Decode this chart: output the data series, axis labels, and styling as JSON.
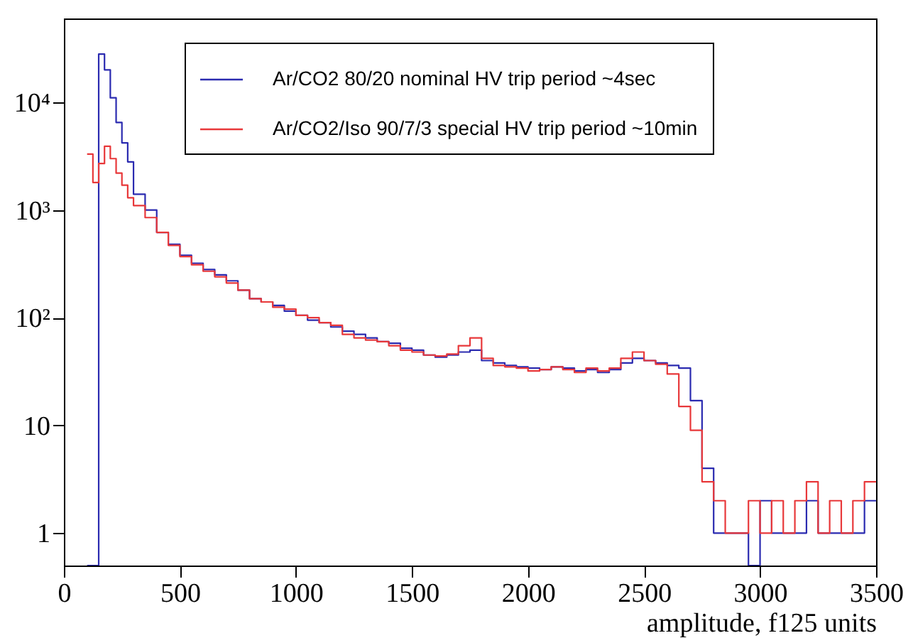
{
  "chart_data": {
    "type": "histogram",
    "xlabel": "amplitude, f125 units",
    "log": "y",
    "grid": false,
    "legend": "top right",
    "xlim": [
      0,
      3500
    ],
    "xticks": [
      0,
      500,
      1000,
      1500,
      2000,
      2500,
      3000,
      3500
    ],
    "ylim": [
      0.5,
      60000
    ],
    "yticks": [
      1,
      10,
      {
        "value": 100,
        "label": "10²"
      },
      {
        "value": 1000,
        "label": "10³"
      },
      {
        "value": 10000,
        "label": "10⁴"
      }
    ],
    "bins": [
      100,
      125,
      150,
      175,
      200,
      225,
      250,
      275,
      300,
      350,
      400,
      450,
      500,
      550,
      600,
      650,
      700,
      750,
      800,
      850,
      900,
      950,
      1000,
      1050,
      1100,
      1150,
      1200,
      1250,
      1300,
      1350,
      1400,
      1450,
      1500,
      1550,
      1600,
      1650,
      1700,
      1750,
      1800,
      1850,
      1900,
      1950,
      2000,
      2050,
      2100,
      2150,
      2200,
      2250,
      2300,
      2350,
      2400,
      2450,
      2500,
      2550,
      2600,
      2650,
      2700,
      2750,
      2800,
      2850,
      2900,
      2950,
      3000,
      3050,
      3100,
      3150,
      3200,
      3250,
      3300,
      3350,
      3400,
      3450,
      3500
    ],
    "series": [
      {
        "name": "Ar/CO2 80/20 nominal HV trip period ~4sec",
        "color": "#2b2bb0",
        "values": [
          null,
          null,
          28000,
          20000,
          11000,
          6500,
          4200,
          2800,
          1400,
          1000,
          620,
          480,
          380,
          320,
          280,
          250,
          220,
          180,
          150,
          140,
          130,
          115,
          105,
          95,
          90,
          82,
          75,
          70,
          65,
          60,
          58,
          52,
          50,
          45,
          43,
          45,
          48,
          50,
          40,
          38,
          36,
          35,
          34,
          33,
          35,
          34,
          32,
          33,
          31,
          33,
          38,
          42,
          40,
          38,
          36,
          34,
          17,
          4,
          1,
          1,
          1,
          null,
          2,
          1,
          1,
          1,
          2,
          1,
          1,
          1,
          1,
          2
        ]
      },
      {
        "name": "Ar/CO2/Iso 90/7/3 special HV trip period ~10min",
        "color": "#e8383a",
        "values": [
          3300,
          1800,
          2700,
          3900,
          3000,
          2200,
          1700,
          1300,
          1100,
          850,
          620,
          470,
          370,
          310,
          270,
          240,
          210,
          180,
          150,
          140,
          125,
          120,
          105,
          100,
          90,
          85,
          70,
          65,
          62,
          60,
          55,
          50,
          48,
          45,
          44,
          46,
          55,
          65,
          42,
          36,
          35,
          34,
          32,
          33,
          35,
          33,
          31,
          34,
          32,
          34,
          42,
          48,
          40,
          37,
          30,
          15,
          9,
          3,
          2,
          1,
          1,
          2,
          1,
          2,
          1,
          2,
          3,
          1,
          2,
          1,
          2,
          3
        ]
      }
    ]
  }
}
